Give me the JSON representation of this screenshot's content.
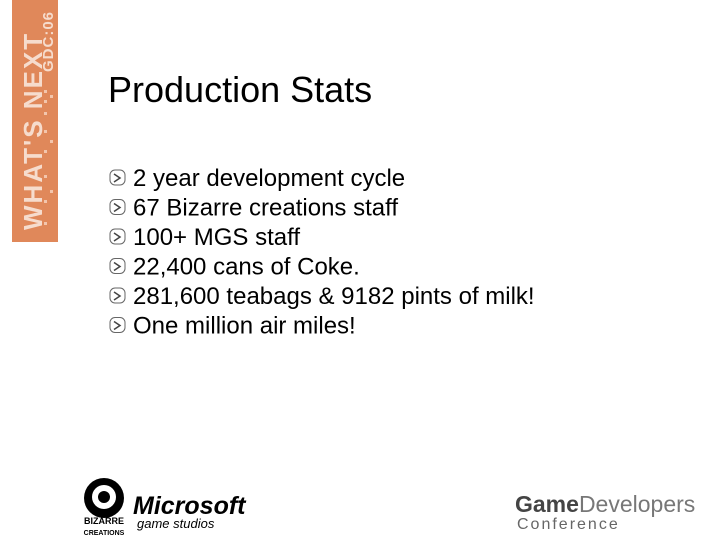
{
  "banner": {
    "main": "WHAT'S NEXT",
    "event": "GDC:06"
  },
  "title": "Production Stats",
  "bullets": [
    "2 year development cycle",
    "67 Bizarre creations staff",
    "100+ MGS staff",
    "22,400 cans of Coke.",
    "281,600 teabags & 9182 pints of milk!",
    "One million air miles!"
  ],
  "footer": {
    "bizarre": [
      "BIZARRE",
      "CREATIONS"
    ],
    "microsoft": "Microsoft",
    "game_studios": "game studios",
    "gdc": {
      "game": "Game",
      "developers": "Developers",
      "conference": "Conference"
    }
  }
}
